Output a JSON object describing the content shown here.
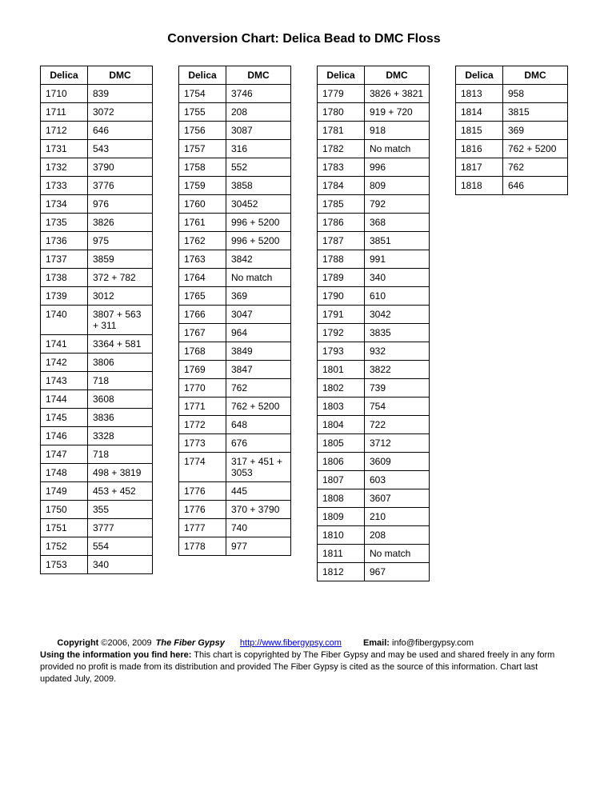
{
  "title": "Conversion Chart: Delica Bead to DMC Floss",
  "headers": {
    "delica": "Delica",
    "dmc": "DMC"
  },
  "tables": [
    {
      "rows": [
        {
          "d": "1710",
          "m": "839"
        },
        {
          "d": "1711",
          "m": "3072"
        },
        {
          "d": "1712",
          "m": "646"
        },
        {
          "d": "1731",
          "m": "543"
        },
        {
          "d": "1732",
          "m": "3790"
        },
        {
          "d": "1733",
          "m": "3776"
        },
        {
          "d": "1734",
          "m": "976"
        },
        {
          "d": "1735",
          "m": "3826"
        },
        {
          "d": "1736",
          "m": "975"
        },
        {
          "d": "1737",
          "m": "3859"
        },
        {
          "d": "1738",
          "m": "372 + 782"
        },
        {
          "d": "1739",
          "m": "3012"
        },
        {
          "d": "1740",
          "m": "3807 + 563 + 311"
        },
        {
          "d": "1741",
          "m": "3364 + 581"
        },
        {
          "d": "1742",
          "m": "3806"
        },
        {
          "d": "1743",
          "m": "718"
        },
        {
          "d": "1744",
          "m": "3608"
        },
        {
          "d": "1745",
          "m": "3836"
        },
        {
          "d": "1746",
          "m": "3328"
        },
        {
          "d": "1747",
          "m": "718"
        },
        {
          "d": "1748",
          "m": "498 + 3819"
        },
        {
          "d": "1749",
          "m": "453 + 452"
        },
        {
          "d": "1750",
          "m": "355"
        },
        {
          "d": "1751",
          "m": "3777"
        },
        {
          "d": "1752",
          "m": "554"
        },
        {
          "d": "1753",
          "m": "340"
        }
      ]
    },
    {
      "rows": [
        {
          "d": "1754",
          "m": "3746"
        },
        {
          "d": "1755",
          "m": "208"
        },
        {
          "d": "1756",
          "m": "3087"
        },
        {
          "d": "1757",
          "m": "316"
        },
        {
          "d": "1758",
          "m": "552"
        },
        {
          "d": "1759",
          "m": "3858"
        },
        {
          "d": "1760",
          "m": "30452"
        },
        {
          "d": "1761",
          "m": "996 + 5200"
        },
        {
          "d": "1762",
          "m": "996 + 5200"
        },
        {
          "d": "1763",
          "m": "3842"
        },
        {
          "d": "1764",
          "m": "No match"
        },
        {
          "d": "1765",
          "m": "369"
        },
        {
          "d": "1766",
          "m": "3047"
        },
        {
          "d": "1767",
          "m": "964"
        },
        {
          "d": "1768",
          "m": "3849"
        },
        {
          "d": "1769",
          "m": "3847"
        },
        {
          "d": "1770",
          "m": "762"
        },
        {
          "d": "1771",
          "m": "762 + 5200"
        },
        {
          "d": "1772",
          "m": "648"
        },
        {
          "d": "1773",
          "m": "676"
        },
        {
          "d": "1774",
          "m": "317 + 451 + 3053"
        },
        {
          "d": "1776",
          "m": "445"
        },
        {
          "d": "1776",
          "m": "370 + 3790"
        },
        {
          "d": "1777",
          "m": "740"
        },
        {
          "d": "1778",
          "m": "977"
        }
      ]
    },
    {
      "rows": [
        {
          "d": "1779",
          "m": "3826 + 3821"
        },
        {
          "d": "1780",
          "m": "919 + 720"
        },
        {
          "d": "1781",
          "m": "918"
        },
        {
          "d": "1782",
          "m": "No match"
        },
        {
          "d": "1783",
          "m": "996"
        },
        {
          "d": "1784",
          "m": "809"
        },
        {
          "d": "1785",
          "m": "792"
        },
        {
          "d": "1786",
          "m": "368"
        },
        {
          "d": "1787",
          "m": "3851"
        },
        {
          "d": "1788",
          "m": "991"
        },
        {
          "d": "1789",
          "m": "340"
        },
        {
          "d": "1790",
          "m": "610"
        },
        {
          "d": "1791",
          "m": "3042"
        },
        {
          "d": "1792",
          "m": "3835"
        },
        {
          "d": "1793",
          "m": "932"
        },
        {
          "d": "1801",
          "m": "3822"
        },
        {
          "d": "1802",
          "m": "739"
        },
        {
          "d": "1803",
          "m": "754"
        },
        {
          "d": "1804",
          "m": "722"
        },
        {
          "d": "1805",
          "m": "3712"
        },
        {
          "d": "1806",
          "m": "3609"
        },
        {
          "d": "1807",
          "m": "603"
        },
        {
          "d": "1808",
          "m": "3607"
        },
        {
          "d": "1809",
          "m": "210"
        },
        {
          "d": "1810",
          "m": "208"
        },
        {
          "d": "1811",
          "m": "No match"
        },
        {
          "d": "1812",
          "m": "967"
        }
      ]
    },
    {
      "rows": [
        {
          "d": "1813",
          "m": "958"
        },
        {
          "d": "1814",
          "m": "3815"
        },
        {
          "d": "1815",
          "m": "369"
        },
        {
          "d": "1816",
          "m": "762 + 5200"
        },
        {
          "d": "1817",
          "m": "762"
        },
        {
          "d": "1818",
          "m": "646"
        }
      ]
    }
  ],
  "footer": {
    "copyright_label": "Copyright",
    "copyright_years": "©2006, 2009",
    "site_name": "The Fiber Gypsy",
    "url": "http://www.fibergypsy.com",
    "email_label": "Email:",
    "email": "info@fibergypsy.com",
    "using_label": "Using the information you find here:",
    "using_text": " This chart is copyrighted by The Fiber Gypsy and may be used and shared freely in any form provided no profit is made from its distribution and provided The Fiber Gypsy is cited as the source of this information.  Chart last updated July, 2009."
  }
}
